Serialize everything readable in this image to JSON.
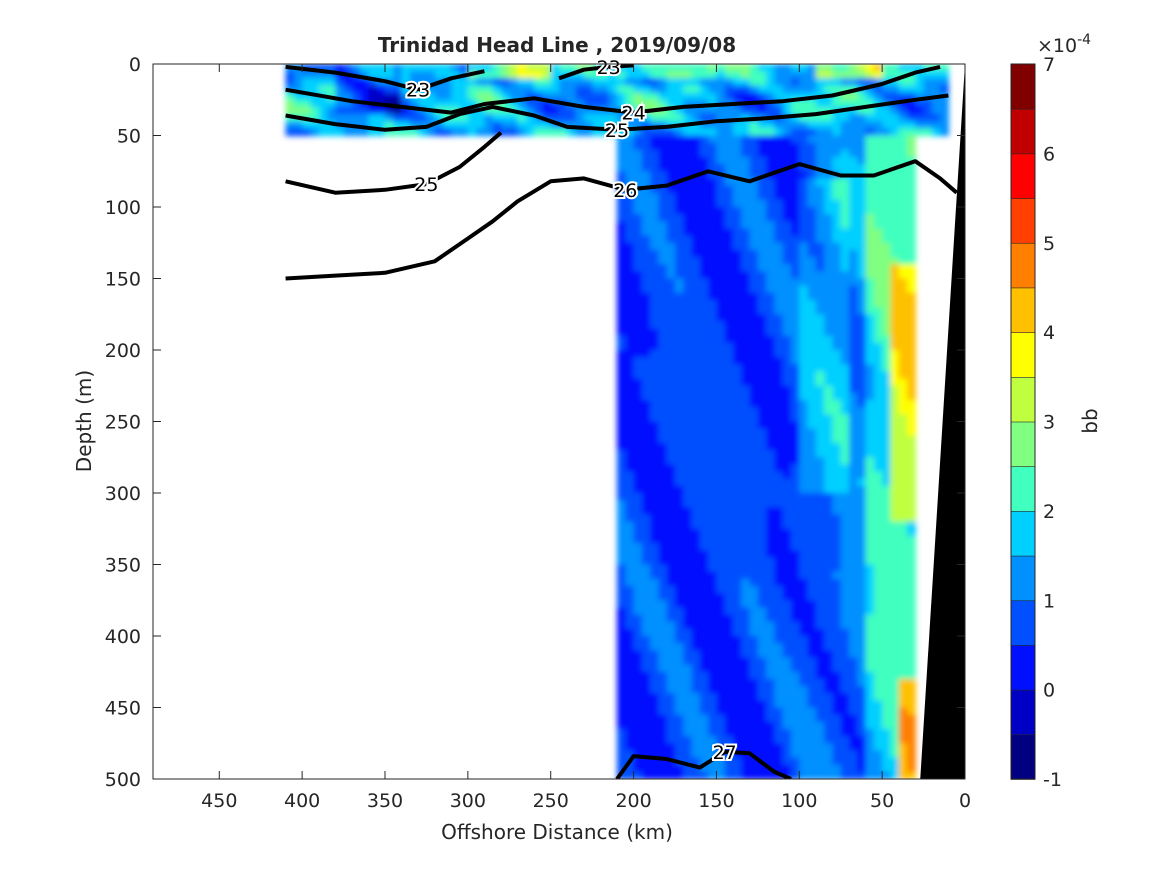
{
  "chart_data": {
    "type": "heatmap",
    "title": "Trinidad Head Line , 2019/09/08",
    "xlabel": "Offshore Distance (km)",
    "ylabel": "Depth (m)",
    "xlim": [
      490,
      0
    ],
    "ylim": [
      0,
      500
    ],
    "x_reversed": true,
    "y_reversed": true,
    "x_ticks": [
      450,
      400,
      350,
      300,
      250,
      200,
      150,
      100,
      50,
      0
    ],
    "y_ticks": [
      0,
      50,
      100,
      150,
      200,
      250,
      300,
      350,
      400,
      450,
      500
    ],
    "colorbar": {
      "label": "bb",
      "exponent_label": "×10",
      "exponent_power": "-4",
      "clim": [
        -1,
        7
      ],
      "ticks": [
        -1,
        0,
        1,
        2,
        3,
        4,
        5,
        6,
        7
      ],
      "levels": 16,
      "colors": [
        "#000080",
        "#0000c4",
        "#0010ff",
        "#0050ff",
        "#0090ff",
        "#00d0ff",
        "#40ffbf",
        "#80ff80",
        "#bfff40",
        "#ffff00",
        "#ffc000",
        "#ff8000",
        "#ff4000",
        "#ff0000",
        "#c00000",
        "#800000"
      ]
    },
    "data_regions": [
      {
        "name": "surface",
        "x_range": [
          410,
          10
        ],
        "depth_range": [
          0,
          50
        ]
      },
      {
        "name": "deep",
        "x_range": [
          210,
          30
        ],
        "depth_range": [
          50,
          500
        ]
      }
    ],
    "density_contours": [
      {
        "level": 23,
        "points": [
          [
            410,
            2
          ],
          [
            380,
            6
          ],
          [
            350,
            12
          ],
          [
            330,
            18
          ],
          [
            310,
            10
          ],
          [
            290,
            5
          ]
        ]
      },
      {
        "level": 23,
        "points": [
          [
            245,
            10
          ],
          [
            230,
            4
          ],
          [
            215,
            2
          ],
          [
            200,
            1
          ]
        ]
      },
      {
        "level": 24,
        "points": [
          [
            410,
            18
          ],
          [
            370,
            26
          ],
          [
            340,
            30
          ],
          [
            310,
            34
          ],
          [
            290,
            28
          ],
          [
            260,
            24
          ],
          [
            230,
            30
          ],
          [
            200,
            34
          ],
          [
            170,
            30
          ],
          [
            140,
            28
          ],
          [
            110,
            26
          ],
          [
            80,
            22
          ],
          [
            50,
            14
          ],
          [
            30,
            6
          ],
          [
            15,
            2
          ]
        ]
      },
      {
        "level": 25,
        "points": [
          [
            410,
            36
          ],
          [
            380,
            42
          ],
          [
            350,
            46
          ],
          [
            325,
            44
          ],
          [
            305,
            35
          ],
          [
            285,
            30
          ],
          [
            260,
            36
          ],
          [
            240,
            44
          ],
          [
            210,
            46
          ],
          [
            180,
            44
          ],
          [
            150,
            40
          ],
          [
            120,
            38
          ],
          [
            90,
            35
          ],
          [
            60,
            30
          ],
          [
            30,
            25
          ],
          [
            10,
            22
          ]
        ]
      },
      {
        "level": 25,
        "points": [
          [
            410,
            82
          ],
          [
            380,
            90
          ],
          [
            350,
            88
          ],
          [
            325,
            84
          ],
          [
            305,
            72
          ],
          [
            290,
            58
          ],
          [
            280,
            48
          ]
        ]
      },
      {
        "level": 26,
        "points": [
          [
            410,
            150
          ],
          [
            380,
            148
          ],
          [
            350,
            146
          ],
          [
            320,
            138
          ],
          [
            300,
            122
          ],
          [
            285,
            110
          ],
          [
            270,
            96
          ],
          [
            250,
            82
          ],
          [
            230,
            80
          ],
          [
            205,
            88
          ],
          [
            180,
            85
          ],
          [
            155,
            75
          ],
          [
            130,
            82
          ],
          [
            100,
            70
          ],
          [
            75,
            78
          ],
          [
            55,
            78
          ],
          [
            30,
            68
          ],
          [
            15,
            80
          ],
          [
            5,
            90
          ]
        ]
      },
      {
        "level": 27,
        "points": [
          [
            210,
            500
          ],
          [
            200,
            484
          ],
          [
            180,
            486
          ],
          [
            160,
            492
          ],
          [
            145,
            481
          ],
          [
            130,
            482
          ],
          [
            115,
            495
          ],
          [
            105,
            500
          ]
        ]
      }
    ]
  }
}
